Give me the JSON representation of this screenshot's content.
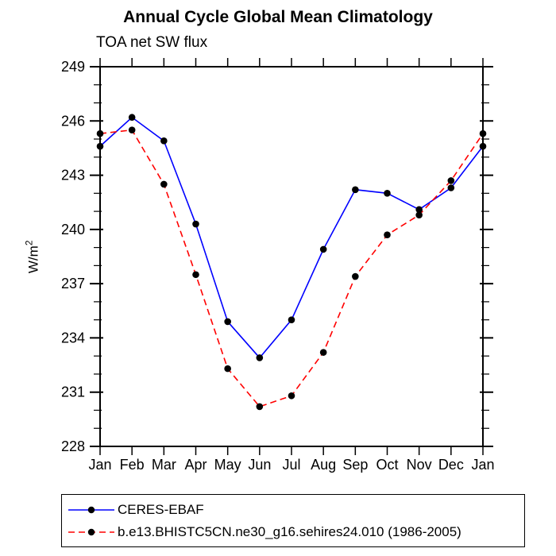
{
  "title": "Annual Cycle Global Mean Climatology",
  "subtitle": "TOA net SW flux",
  "ylabel": "W/m",
  "ylabel_sup": "2",
  "chart_data": {
    "type": "line",
    "categories": [
      "Jan",
      "Feb",
      "Mar",
      "Apr",
      "May",
      "Jun",
      "Jul",
      "Aug",
      "Sep",
      "Oct",
      "Nov",
      "Dec",
      "Jan"
    ],
    "series": [
      {
        "name": "CERES-EBAF",
        "color": "#0000ff",
        "style": "solid",
        "marker": "circle",
        "marker_color": "#000000",
        "values": [
          244.6,
          246.2,
          244.9,
          240.3,
          234.9,
          232.9,
          235.0,
          238.9,
          242.2,
          242.0,
          241.1,
          242.3,
          244.6
        ]
      },
      {
        "name": "b.e13.BHISTC5CN.ne30_g16.sehires24.010 (1986-2005)",
        "color": "#ff0000",
        "style": "dashed",
        "marker": "circle",
        "marker_color": "#000000",
        "values": [
          245.3,
          245.5,
          242.5,
          237.5,
          232.3,
          230.2,
          230.8,
          233.2,
          237.4,
          239.7,
          240.8,
          242.7,
          245.3
        ]
      }
    ],
    "ylim": [
      228,
      249
    ],
    "ytick_major": [
      228,
      231,
      234,
      237,
      240,
      243,
      246,
      249
    ],
    "ytick_minor_step": 1,
    "grid": false,
    "legend_position": "bottom-left-box",
    "axis_color": "#000000"
  }
}
